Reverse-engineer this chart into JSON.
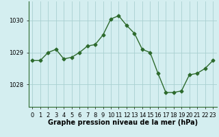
{
  "x": [
    0,
    1,
    2,
    3,
    4,
    5,
    6,
    7,
    8,
    9,
    10,
    11,
    12,
    13,
    14,
    15,
    16,
    17,
    18,
    19,
    20,
    21,
    22,
    23
  ],
  "y": [
    1028.75,
    1028.75,
    1029.0,
    1029.1,
    1028.8,
    1028.85,
    1029.0,
    1029.2,
    1029.25,
    1029.55,
    1030.05,
    1030.15,
    1029.85,
    1029.6,
    1029.1,
    1029.0,
    1028.35,
    1027.75,
    1027.75,
    1027.8,
    1028.3,
    1028.35,
    1028.5,
    1028.75
  ],
  "line_color": "#2d6a2d",
  "marker": "D",
  "marker_size": 2.5,
  "bg_color": "#d4eef0",
  "grid_color": "#a8d0d0",
  "xlabel": "Graphe pression niveau de la mer (hPa)",
  "xlabel_fontsize": 7,
  "ytick_labels": [
    "1028",
    "1029",
    "1030"
  ],
  "ytick_values": [
    1028,
    1029,
    1030
  ],
  "xticks": [
    0,
    1,
    2,
    3,
    4,
    5,
    6,
    7,
    8,
    9,
    10,
    11,
    12,
    13,
    14,
    15,
    16,
    17,
    18,
    19,
    20,
    21,
    22,
    23
  ],
  "ylim": [
    1027.3,
    1030.6
  ],
  "xlim": [
    -0.5,
    23.5
  ],
  "tick_fontsize": 6,
  "bottom_color": "#2d6a2d",
  "left_color": "#2d6a2d"
}
